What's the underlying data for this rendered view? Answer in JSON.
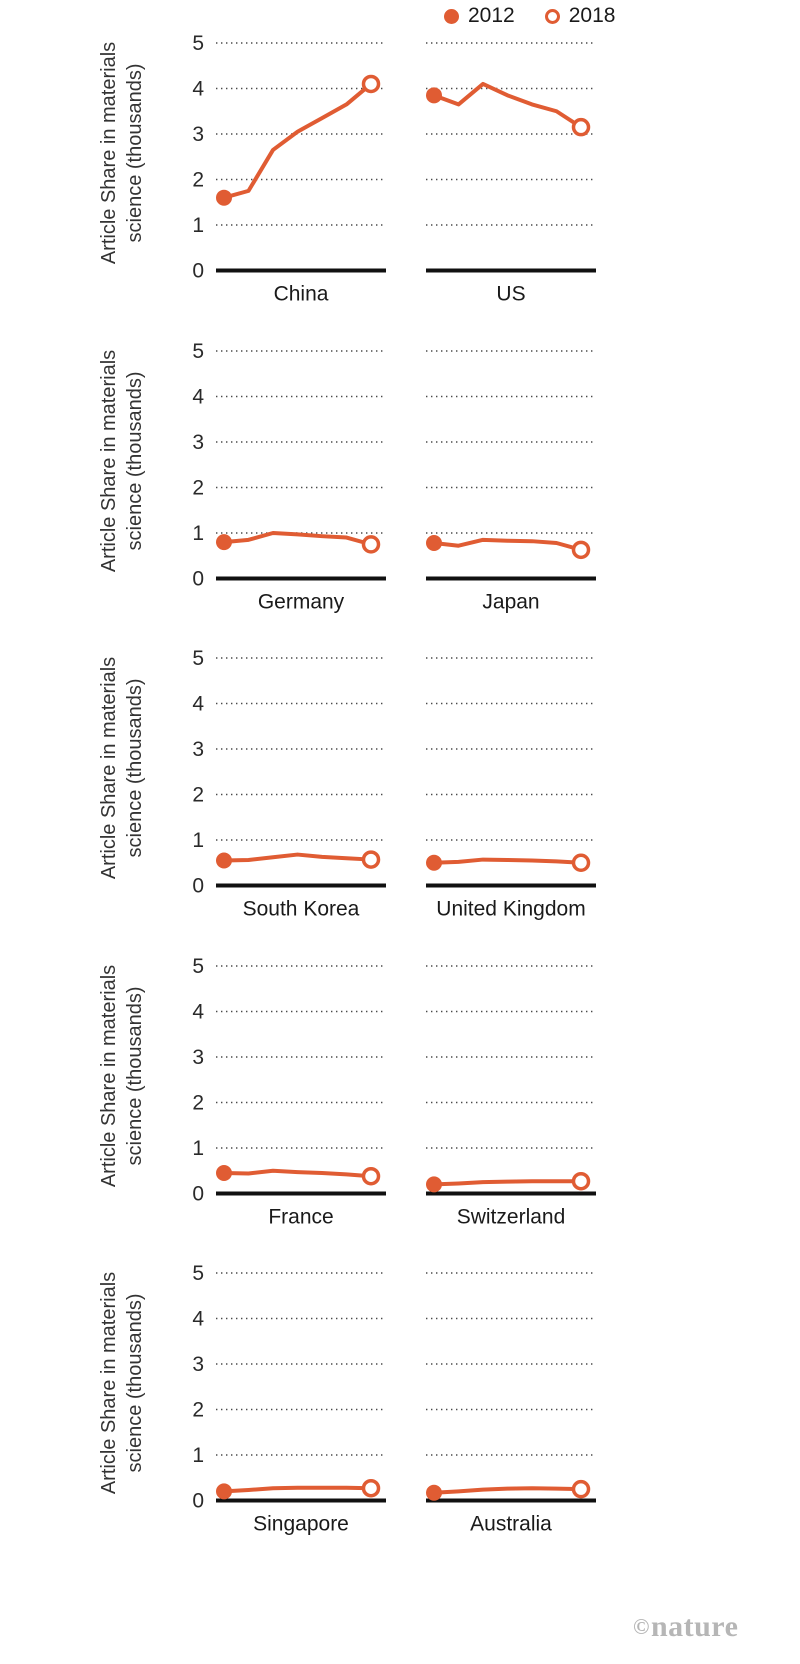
{
  "colors": {
    "accent": "#e05c33",
    "grid": "#4a4a4a",
    "axis": "#111111",
    "text": "#1a1a1a",
    "watermark": "#b6b6b6"
  },
  "chart_data": {
    "type": "line",
    "title": "",
    "ylabel": "Article Share in materials science (thousands)",
    "ylabel_lines": [
      "Article Share in materials",
      "science (thousands)"
    ],
    "xlabel": "",
    "x": [
      2012,
      2013,
      2014,
      2015,
      2016,
      2017,
      2018
    ],
    "ylim": [
      0,
      5
    ],
    "yticks": [
      0,
      1,
      2,
      3,
      4,
      5
    ],
    "grid": "dotted-horizontal",
    "legend_position": "top",
    "legend": [
      {
        "label": "2012",
        "marker": "filled-dot"
      },
      {
        "label": "2018",
        "marker": "open-circle"
      }
    ],
    "panels": [
      {
        "country": "China",
        "values": [
          1.6,
          1.75,
          2.65,
          3.05,
          3.35,
          3.65,
          4.1
        ]
      },
      {
        "country": "US",
        "values": [
          3.85,
          3.65,
          4.1,
          3.85,
          3.65,
          3.5,
          3.15
        ]
      },
      {
        "country": "Germany",
        "values": [
          0.8,
          0.85,
          1.0,
          0.97,
          0.93,
          0.9,
          0.75
        ]
      },
      {
        "country": "Japan",
        "values": [
          0.78,
          0.72,
          0.85,
          0.83,
          0.82,
          0.78,
          0.63
        ]
      },
      {
        "country": "South Korea",
        "values": [
          0.55,
          0.56,
          0.62,
          0.68,
          0.63,
          0.6,
          0.57
        ]
      },
      {
        "country": "United Kingdom",
        "values": [
          0.5,
          0.52,
          0.57,
          0.56,
          0.55,
          0.53,
          0.5
        ]
      },
      {
        "country": "France",
        "values": [
          0.45,
          0.44,
          0.5,
          0.47,
          0.45,
          0.42,
          0.38
        ]
      },
      {
        "country": "Switzerland",
        "values": [
          0.2,
          0.22,
          0.25,
          0.26,
          0.27,
          0.27,
          0.27
        ]
      },
      {
        "country": "Singapore",
        "values": [
          0.2,
          0.23,
          0.27,
          0.28,
          0.28,
          0.28,
          0.27
        ]
      },
      {
        "country": "Australia",
        "values": [
          0.17,
          0.2,
          0.24,
          0.26,
          0.27,
          0.26,
          0.25
        ]
      }
    ]
  },
  "watermark": {
    "copyright": "©",
    "text": "nature"
  }
}
